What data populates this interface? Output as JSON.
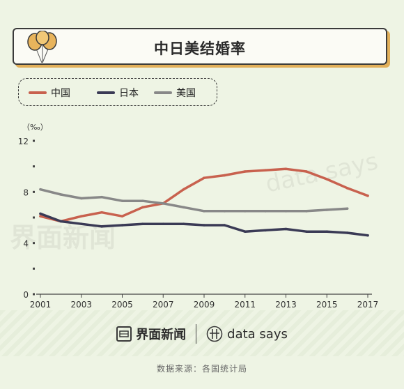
{
  "header": {
    "title": "中日美结婚率",
    "icon": "balloon-icon"
  },
  "legend": [
    {
      "label": "中国",
      "color": "#c8614e"
    },
    {
      "label": "日本",
      "color": "#3a3a55"
    },
    {
      "label": "美国",
      "color": "#888888"
    }
  ],
  "footer": {
    "brand_a": "界面新闻",
    "brand_b": "data says",
    "source": "数据来源：各国统计局"
  },
  "watermark": {
    "a": "界面新闻",
    "b": "data says"
  },
  "chart_data": {
    "type": "line",
    "unit": "（‰）",
    "x": [
      2001,
      2002,
      2003,
      2004,
      2005,
      2006,
      2007,
      2008,
      2009,
      2010,
      2011,
      2012,
      2013,
      2014,
      2015,
      2016,
      2017
    ],
    "x_ticks": [
      "2001",
      "2003",
      "2005",
      "2007",
      "2009",
      "2011",
      "2013",
      "2015",
      "2017"
    ],
    "y_ticks": [
      "0",
      "4",
      "8",
      "12"
    ],
    "ylim": [
      0,
      12
    ],
    "series": [
      {
        "name": "中国",
        "color": "#c8614e",
        "values": [
          6.1,
          5.7,
          6.1,
          6.4,
          6.1,
          6.8,
          7.1,
          8.2,
          9.1,
          9.3,
          9.6,
          9.7,
          9.8,
          9.6,
          9.0,
          8.3,
          7.7
        ]
      },
      {
        "name": "日本",
        "color": "#3a3a55",
        "values": [
          6.3,
          5.7,
          5.5,
          5.3,
          5.4,
          5.5,
          5.5,
          5.5,
          5.4,
          5.4,
          4.9,
          5.0,
          5.1,
          4.9,
          4.9,
          4.8,
          4.6
        ]
      },
      {
        "name": "美国",
        "color": "#888888",
        "values": [
          8.2,
          7.8,
          7.5,
          7.6,
          7.3,
          7.3,
          7.1,
          6.8,
          6.5,
          6.5,
          6.5,
          6.5,
          6.5,
          6.5,
          6.6,
          6.7,
          null
        ]
      }
    ]
  }
}
